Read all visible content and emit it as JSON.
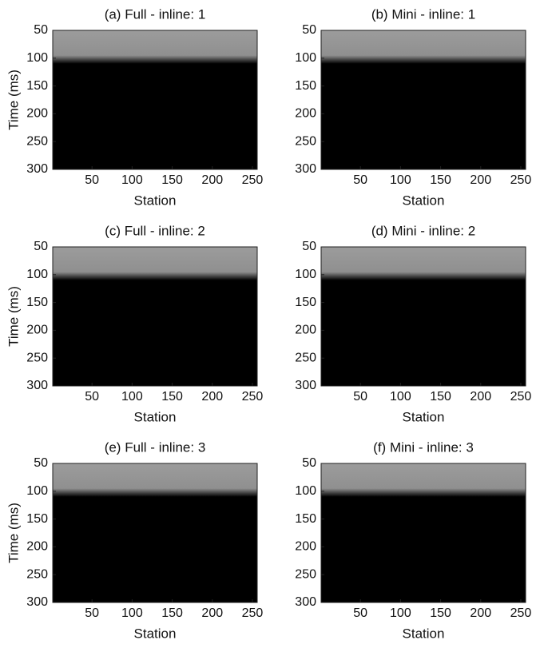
{
  "chart_data": [
    {
      "type": "image",
      "title": "(a) Full -  inline: 1",
      "xlabel": "Station",
      "ylabel": "Time (ms)",
      "xlim": [
        1,
        256
      ],
      "ylim": [
        50,
        300
      ],
      "y_reversed": true,
      "xticks": [
        50,
        100,
        150,
        200,
        250
      ],
      "yticks": [
        50,
        100,
        150,
        200,
        250,
        300
      ]
    },
    {
      "type": "image",
      "title": "(b) Mini -  inline: 1",
      "xlabel": "Station",
      "xlim": [
        1,
        256
      ],
      "ylim": [
        50,
        300
      ],
      "y_reversed": true,
      "xticks": [
        50,
        100,
        150,
        200,
        250
      ],
      "yticks": [
        50,
        100,
        150,
        200,
        250,
        300
      ]
    },
    {
      "type": "image",
      "title": "(c) Full -  inline: 2",
      "xlabel": "Station",
      "ylabel": "Time (ms)",
      "xlim": [
        1,
        256
      ],
      "ylim": [
        50,
        300
      ],
      "y_reversed": true,
      "xticks": [
        50,
        100,
        150,
        200,
        250
      ],
      "yticks": [
        50,
        100,
        150,
        200,
        250,
        300
      ]
    },
    {
      "type": "image",
      "title": "(d) Mini -  inline: 2",
      "xlabel": "Station",
      "xlim": [
        1,
        256
      ],
      "ylim": [
        50,
        300
      ],
      "y_reversed": true,
      "xticks": [
        50,
        100,
        150,
        200,
        250
      ],
      "yticks": [
        50,
        100,
        150,
        200,
        250,
        300
      ]
    },
    {
      "type": "image",
      "title": "(e) Full -  inline: 3",
      "xlabel": "Station",
      "ylabel": "Time (ms)",
      "xlim": [
        1,
        256
      ],
      "ylim": [
        50,
        300
      ],
      "y_reversed": true,
      "xticks": [
        50,
        100,
        150,
        200,
        250
      ],
      "yticks": [
        50,
        100,
        150,
        200,
        250,
        300
      ]
    },
    {
      "type": "image",
      "title": "(f) Mini -  inline: 3",
      "xlabel": "Station",
      "xlim": [
        1,
        256
      ],
      "ylim": [
        50,
        300
      ],
      "y_reversed": true,
      "xticks": [
        50,
        100,
        150,
        200,
        250
      ],
      "yticks": [
        50,
        100,
        150,
        200,
        250,
        300
      ]
    }
  ]
}
